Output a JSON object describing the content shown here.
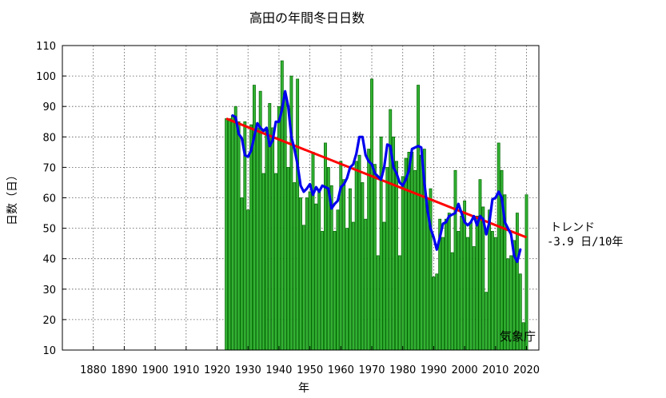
{
  "chart_data": {
    "type": "bar",
    "title": "高田の年間冬日日数",
    "xlabel": "年",
    "ylabel": "日数（日）",
    "xlim": [
      1870,
      2024
    ],
    "ylim": [
      10,
      110
    ],
    "xticks": [
      1880,
      1890,
      1900,
      1910,
      1920,
      1930,
      1940,
      1950,
      1960,
      1970,
      1980,
      1990,
      2000,
      2010,
      2020
    ],
    "yticks": [
      10,
      20,
      30,
      40,
      50,
      60,
      70,
      80,
      90,
      100,
      110
    ],
    "grid": true,
    "bars": {
      "years": [
        1923,
        1924,
        1925,
        1926,
        1927,
        1928,
        1929,
        1930,
        1931,
        1932,
        1933,
        1934,
        1935,
        1936,
        1937,
        1938,
        1939,
        1940,
        1941,
        1942,
        1943,
        1944,
        1945,
        1946,
        1947,
        1948,
        1949,
        1950,
        1951,
        1952,
        1953,
        1954,
        1955,
        1956,
        1957,
        1958,
        1959,
        1960,
        1961,
        1962,
        1963,
        1964,
        1965,
        1966,
        1967,
        1968,
        1969,
        1970,
        1971,
        1972,
        1973,
        1974,
        1975,
        1976,
        1977,
        1978,
        1979,
        1980,
        1981,
        1982,
        1983,
        1984,
        1985,
        1986,
        1987,
        1988,
        1989,
        1990,
        1991,
        1992,
        1993,
        1994,
        1995,
        1996,
        1997,
        1998,
        1999,
        2000,
        2001,
        2002,
        2003,
        2004,
        2005,
        2006,
        2007,
        2008,
        2009,
        2010,
        2011,
        2012,
        2013,
        2014,
        2015,
        2016,
        2017,
        2018,
        2019,
        2020
      ],
      "values": [
        86,
        86,
        87,
        90,
        85,
        60,
        85,
        56,
        84,
        97,
        83,
        95,
        68,
        82,
        91,
        83,
        68,
        90,
        105,
        93,
        70,
        100,
        65,
        99,
        60,
        51,
        60,
        62,
        75,
        58,
        62,
        49,
        78,
        70,
        64,
        49,
        56,
        72,
        66,
        50,
        63,
        52,
        72,
        74,
        65,
        53,
        76,
        99,
        71,
        41,
        80,
        52,
        70,
        89,
        80,
        72,
        41,
        67,
        73,
        75,
        75,
        69,
        97,
        74,
        76,
        60,
        63,
        34,
        35,
        53,
        47,
        53,
        55,
        42,
        69,
        49,
        54,
        59,
        47,
        52,
        44,
        54,
        66,
        57,
        29,
        56,
        49,
        47,
        78,
        69,
        61,
        40,
        41,
        46,
        55,
        35,
        19,
        61
      ]
    },
    "moving_average": {
      "years": [
        1925,
        1926,
        1927,
        1928,
        1929,
        1930,
        1931,
        1932,
        1933,
        1934,
        1935,
        1936,
        1937,
        1938,
        1939,
        1940,
        1941,
        1942,
        1943,
        1944,
        1945,
        1946,
        1947,
        1948,
        1949,
        1950,
        1951,
        1952,
        1953,
        1954,
        1955,
        1956,
        1957,
        1958,
        1959,
        1960,
        1961,
        1962,
        1963,
        1964,
        1965,
        1966,
        1967,
        1968,
        1969,
        1970,
        1971,
        1972,
        1973,
        1974,
        1975,
        1976,
        1977,
        1978,
        1979,
        1980,
        1981,
        1982,
        1983,
        1984,
        1985,
        1986,
        1987,
        1988,
        1989,
        1990,
        1991,
        1992,
        1993,
        1994,
        1995,
        1996,
        1997,
        1998,
        1999,
        2000,
        2001,
        2002,
        2003,
        2004,
        2005,
        2006,
        2007,
        2008,
        2009,
        2010,
        2011,
        2012,
        2013,
        2014,
        2015,
        2016,
        2017,
        2018
      ],
      "values": [
        87,
        86.5,
        81,
        79.5,
        74,
        73.5,
        75.5,
        80,
        84.5,
        83,
        82,
        83,
        77,
        79,
        85,
        85,
        89,
        95,
        90,
        80,
        76,
        71,
        64,
        62,
        63,
        64.5,
        61,
        63.5,
        62,
        64,
        63.5,
        63,
        56.5,
        58,
        59,
        63.5,
        64.5,
        66.5,
        70,
        71,
        74.5,
        80,
        80,
        74,
        72,
        71,
        68,
        67,
        66,
        70,
        77.5,
        77,
        70,
        68,
        65,
        64,
        66,
        69,
        76,
        76.5,
        77,
        76.5,
        65,
        56,
        50,
        47,
        43,
        47,
        51.5,
        52,
        54,
        54.5,
        55,
        58,
        55,
        52,
        51,
        52,
        54,
        51,
        54,
        53,
        48,
        52,
        59.5,
        60,
        62,
        60,
        52,
        50,
        48,
        41,
        39,
        43
      ]
    },
    "trend": {
      "start": [
        1923,
        86
      ],
      "end": [
        2020,
        47
      ],
      "label": "トレンド",
      "value": "-3.9 日/10年"
    },
    "credit": "気象庁",
    "colors": {
      "bar_fill": "#33b233",
      "bar_stroke": "#006400",
      "moving_average": "#0000ee",
      "trend": "#ff0000",
      "grid": "#555555"
    }
  }
}
